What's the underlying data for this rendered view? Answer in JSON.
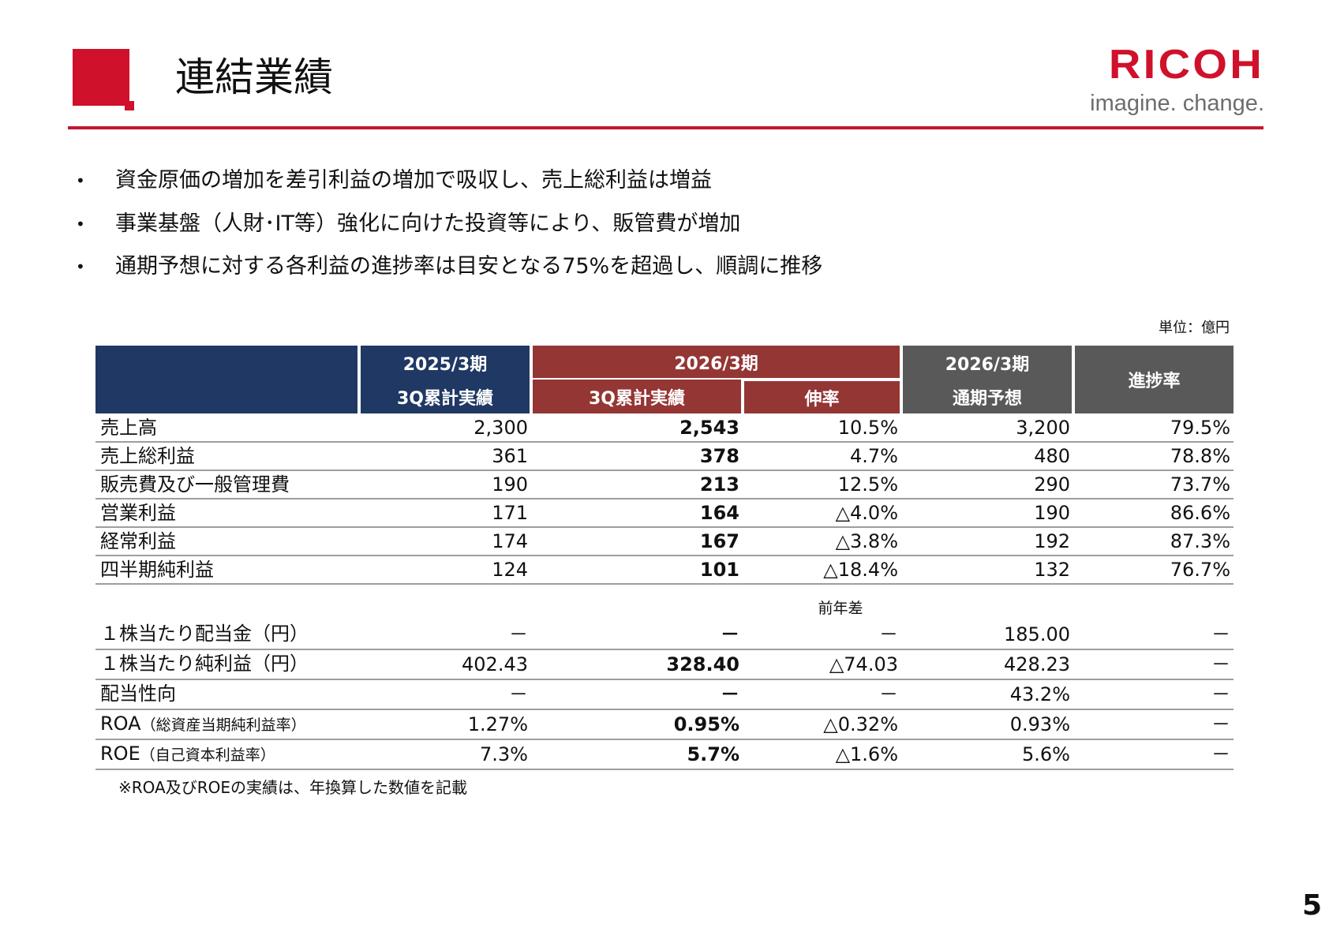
{
  "header": {
    "title": "連結業績",
    "logo_text": "RICOH",
    "logo_tagline": "imagine. change.",
    "brand_color": "#d0112b"
  },
  "bullets": [
    "資金原価の増加を差引利益の増加で吸収し、売上総利益は増益",
    "事業基盤（人財･IT等）強化に向けた投資等により、販管費が増加",
    "通期予想に対する各利益の進捗率は目安となる75%を超過し、順調に推移"
  ],
  "unit": "単位：億円",
  "table_header": {
    "col1_top": "2025/3期",
    "col1_bottom": "3Q累計実績",
    "col2_top": "2026/3期",
    "col2_bottom": "3Q累計実績",
    "col3_bottom": "伸率",
    "col4_top": "2026/3期",
    "col4_bottom": "通期予想",
    "col5": "進捗率"
  },
  "rows": [
    {
      "label": "売上高",
      "fy25": "2,300",
      "fy26": "2,543",
      "growth": "10.5%",
      "forecast": "3,200",
      "progress": "79.5%"
    },
    {
      "label": "売上総利益",
      "fy25": "361",
      "fy26": "378",
      "growth": "4.7%",
      "forecast": "480",
      "progress": "78.8%"
    },
    {
      "label": "販売費及び一般管理費",
      "fy25": "190",
      "fy26": "213",
      "growth": "12.5%",
      "forecast": "290",
      "progress": "73.7%"
    },
    {
      "label": "営業利益",
      "fy25": "171",
      "fy26": "164",
      "growth": "△4.0%",
      "forecast": "190",
      "progress": "86.6%"
    },
    {
      "label": "経常利益",
      "fy25": "174",
      "fy26": "167",
      "growth": "△3.8%",
      "forecast": "192",
      "progress": "87.3%"
    },
    {
      "label": "四半期純利益",
      "fy25": "124",
      "fy26": "101",
      "growth": "△18.4%",
      "forecast": "132",
      "progress": "76.7%"
    }
  ],
  "sub_header": "前年差",
  "rows2": [
    {
      "label": "１株当たり配当金（円）",
      "sub": "",
      "fy25": "－",
      "fy26": "－",
      "diff": "－",
      "forecast": "185.00",
      "progress": "－"
    },
    {
      "label": "１株当たり純利益（円）",
      "sub": "",
      "fy25": "402.43",
      "fy26": "328.40",
      "diff": "△74.03",
      "forecast": "428.23",
      "progress": "－"
    },
    {
      "label": "配当性向",
      "sub": "",
      "fy25": "－",
      "fy26": "－",
      "diff": "－",
      "forecast": "43.2%",
      "progress": "－"
    },
    {
      "label": "ROA",
      "sub": "（総資産当期純利益率）",
      "fy25": "1.27%",
      "fy26": "0.95%",
      "diff": "△0.32%",
      "forecast": "0.93%",
      "progress": "－"
    },
    {
      "label": "ROE",
      "sub": "（自己資本利益率）",
      "fy25": "7.3%",
      "fy26": "5.7%",
      "diff": "△1.6%",
      "forecast": "5.6%",
      "progress": "－"
    }
  ],
  "footnote": "※ROA及びROEの実績は、年換算した数値を記載",
  "page_number": "5"
}
